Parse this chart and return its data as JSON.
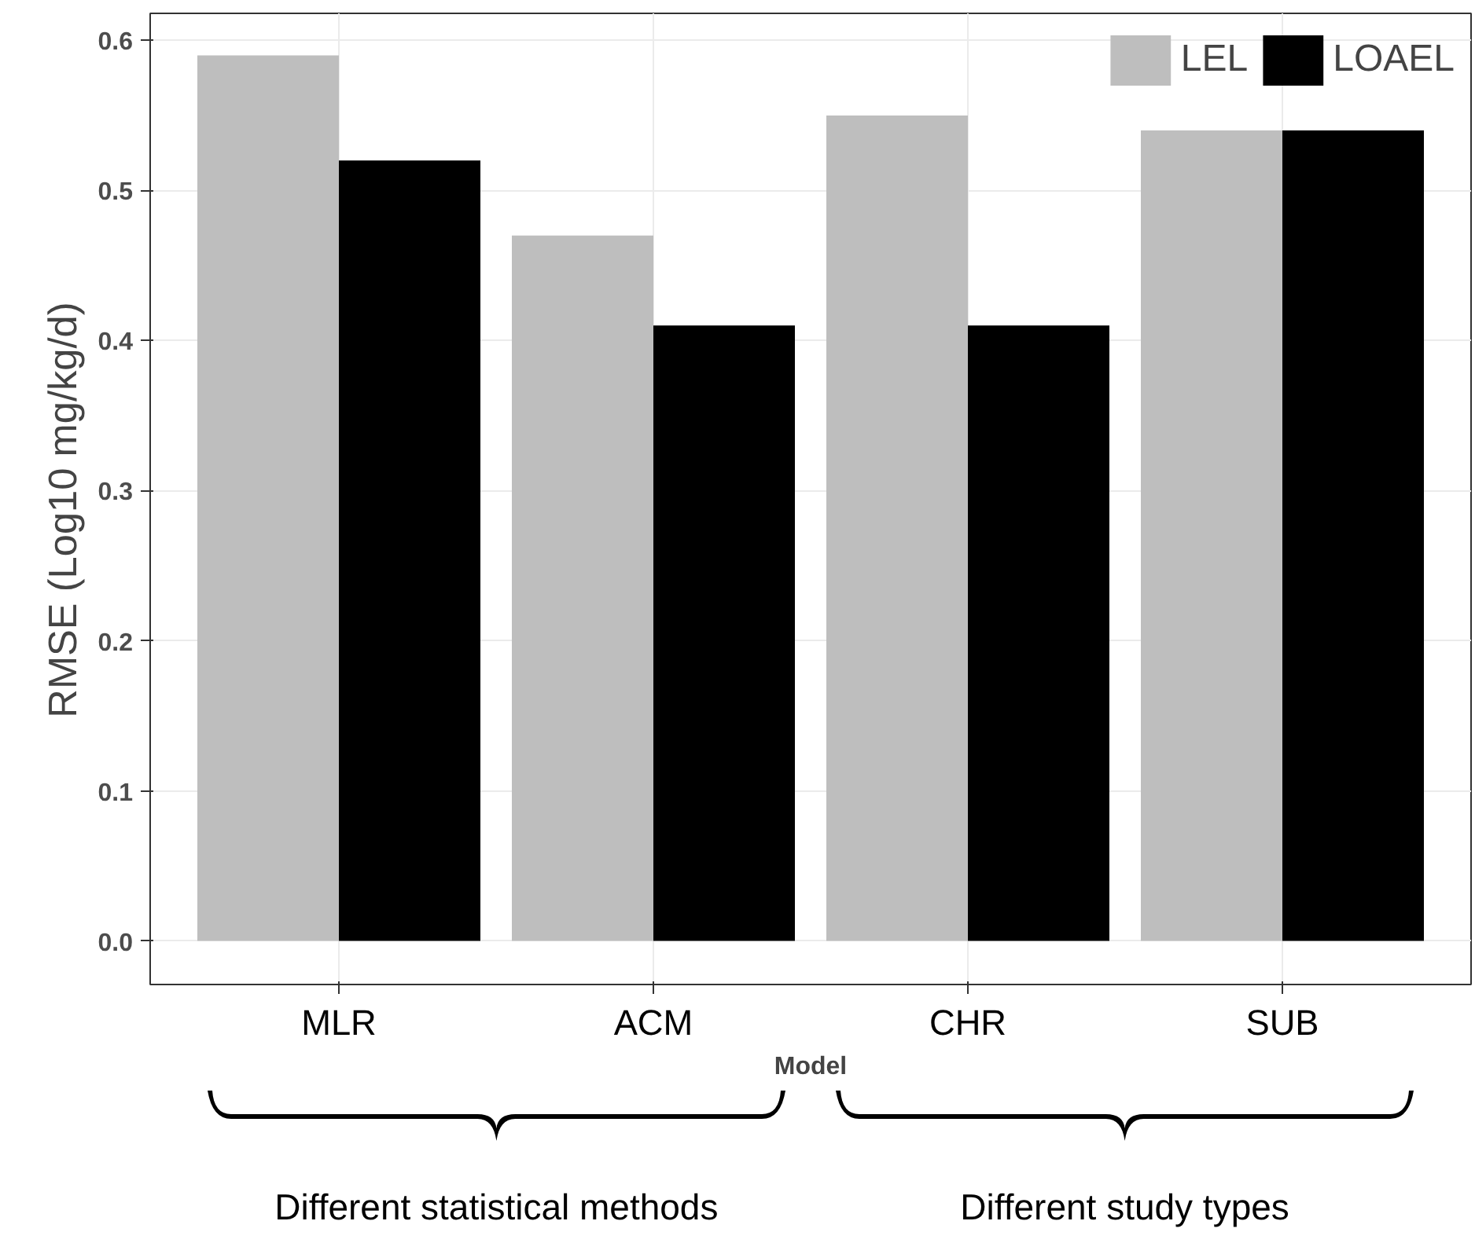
{
  "chart_data": {
    "type": "bar",
    "xlabel": "Model",
    "ylabel": "RMSE  (Log10  mg/kg/d)",
    "categories": [
      "MLR",
      "ACM",
      "CHR",
      "SUB"
    ],
    "series": [
      {
        "name": "LEL",
        "color": "#bebebe",
        "values": [
          0.59,
          0.47,
          0.55,
          0.54
        ]
      },
      {
        "name": "LOAEL",
        "color": "#000000",
        "values": [
          0.52,
          0.41,
          0.41,
          0.54
        ]
      }
    ],
    "ylim": [
      -0.029,
      0.618
    ],
    "yticks": [
      {
        "value": 0,
        "label": "0.0"
      },
      0.1,
      0.2,
      0.3,
      0.4,
      0.5,
      0.6
    ],
    "grid": true,
    "legend": "top right",
    "annotations": [
      "Different statistical methods",
      "Different study types"
    ]
  }
}
